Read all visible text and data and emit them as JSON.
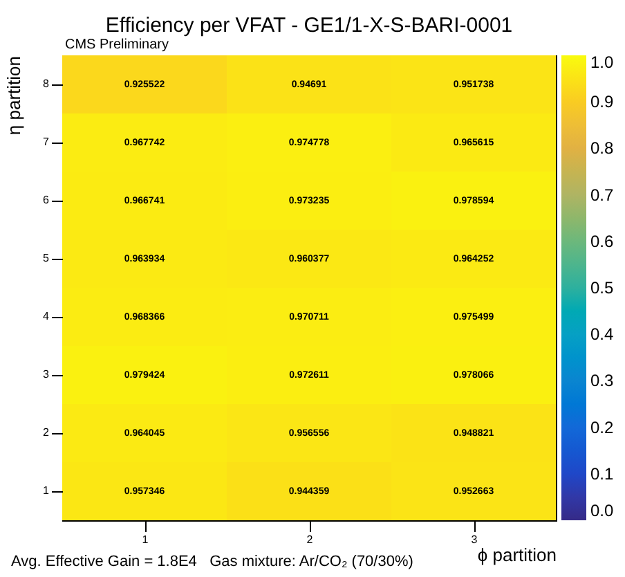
{
  "chart_data": {
    "type": "heatmap",
    "title": "Efficiency per VFAT - GE1/1-X-S-BARI-0001",
    "xlabel": "ϕ partition",
    "ylabel": "η partition",
    "categories": [
      "1",
      "2",
      "3"
    ],
    "y_categories": [
      "8",
      "7",
      "6",
      "5",
      "4",
      "3",
      "2",
      "1"
    ],
    "cells": [
      [
        0.925522,
        0.94691,
        0.951738
      ],
      [
        0.967742,
        0.974778,
        0.965615
      ],
      [
        0.966741,
        0.973235,
        0.978594
      ],
      [
        0.963934,
        0.960377,
        0.964252
      ],
      [
        0.968366,
        0.970711,
        0.975499
      ],
      [
        0.979424,
        0.972611,
        0.978066
      ],
      [
        0.964045,
        0.956556,
        0.948821
      ],
      [
        0.957346,
        0.944359,
        0.952663
      ]
    ],
    "data_labels": true,
    "clim": [
      0,
      1
    ],
    "cticks": [
      {
        "value": 0,
        "label": "0.0"
      },
      {
        "value": 0.1,
        "label": "0.1"
      },
      {
        "value": 0.2,
        "label": "0.2"
      },
      {
        "value": 0.3,
        "label": "0.3"
      },
      {
        "value": 0.4,
        "label": "0.4"
      },
      {
        "value": 0.5,
        "label": "0.5"
      },
      {
        "value": 0.6,
        "label": "0.6"
      },
      {
        "value": 0.7,
        "label": "0.7"
      },
      {
        "value": 0.8,
        "label": "0.8"
      },
      {
        "value": 0.9,
        "label": "0.9"
      },
      {
        "value": 1,
        "label": "1.0"
      }
    ],
    "annotations": [
      "CMS Preliminary",
      "Avg. Effective Gain = 1.8E4   Gas mixture: Ar/CO₂ (70/30%)"
    ]
  }
}
